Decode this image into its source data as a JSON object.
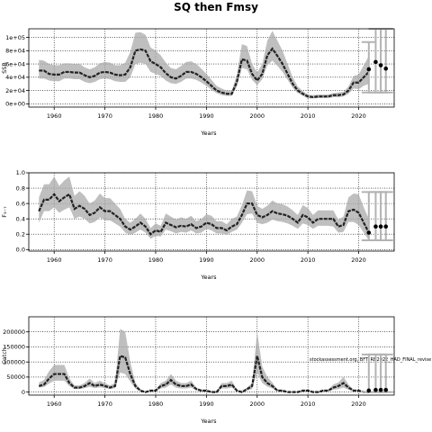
{
  "figure": {
    "title": "SQ then Fmsy",
    "watermark": "stockassessment.org, BFT_RB2022_HAD_FINAL_revise"
  },
  "chart_data": [
    {
      "type": "line",
      "id": "ssb",
      "ylabel": "SSB",
      "xlabel": "Years",
      "xlim": [
        1955,
        2027
      ],
      "ylim": [
        -5000,
        113000
      ],
      "xticks": [
        1960,
        1970,
        1980,
        1990,
        2000,
        2010,
        2020
      ],
      "yticks": [
        0,
        20000,
        40000,
        60000,
        80000,
        100000
      ],
      "ytick_labels": [
        "0e+00",
        "2e+04",
        "4e+04",
        "6e+04",
        "8e+04",
        "1e+05"
      ],
      "grid": "dotted",
      "series": [
        {
          "x": [
            1957,
            1958,
            1959,
            1960,
            1961,
            1962,
            1963,
            1964,
            1965,
            1966,
            1967,
            1968,
            1969,
            1970,
            1971,
            1972,
            1973,
            1974,
            1975,
            1976,
            1977,
            1978,
            1979,
            1980,
            1981,
            1982,
            1983,
            1984,
            1985,
            1986,
            1987,
            1988,
            1989,
            1990,
            1991,
            1992,
            1993,
            1994,
            1995,
            1996,
            1997,
            1998,
            1999,
            2000,
            2001,
            2002,
            2003,
            2004,
            2005,
            2006,
            2007,
            2008,
            2009,
            2010,
            2011,
            2012,
            2013,
            2014,
            2015,
            2016,
            2017,
            2018,
            2019,
            2020,
            2021,
            2022
          ],
          "y": [
            50000,
            50000,
            45000,
            44000,
            44000,
            48000,
            48000,
            47000,
            47000,
            43000,
            40000,
            42000,
            47000,
            48000,
            47000,
            44000,
            43000,
            44000,
            55000,
            80000,
            82000,
            80000,
            64000,
            60000,
            55000,
            46000,
            40000,
            38000,
            42000,
            48000,
            48000,
            45000,
            40000,
            34000,
            27000,
            20000,
            17000,
            15000,
            15000,
            33000,
            67000,
            65000,
            45000,
            35000,
            45000,
            73000,
            83000,
            72000,
            60000,
            45000,
            30000,
            20000,
            15000,
            11000,
            10000,
            11000,
            11000,
            11000,
            13000,
            13000,
            14000,
            20000,
            32000,
            32000,
            40000,
            48000
          ],
          "lower": [
            38000,
            38000,
            35000,
            34000,
            34000,
            38000,
            38000,
            37000,
            37000,
            33000,
            31000,
            33000,
            37000,
            38000,
            37000,
            34000,
            33000,
            33000,
            40000,
            60000,
            62000,
            60000,
            48000,
            45000,
            42000,
            35000,
            31000,
            30000,
            33000,
            38000,
            38000,
            36000,
            32000,
            27000,
            21000,
            16000,
            13000,
            12000,
            12000,
            26000,
            54000,
            52000,
            36000,
            28000,
            37000,
            58000,
            65000,
            57000,
            48000,
            36000,
            24000,
            16000,
            12000,
            8000,
            8000,
            8500,
            8500,
            8500,
            10000,
            10000,
            11000,
            15000,
            23000,
            22000,
            27000,
            30000
          ],
          "upper": [
            66000,
            65000,
            60000,
            58000,
            58000,
            61000,
            61000,
            60000,
            60000,
            55000,
            52000,
            55000,
            61000,
            63000,
            62000,
            58000,
            58000,
            62000,
            78000,
            107000,
            108000,
            104000,
            85000,
            80000,
            73000,
            62000,
            54000,
            52000,
            57000,
            63000,
            64000,
            60000,
            53000,
            45000,
            36000,
            27000,
            23000,
            20000,
            20000,
            44000,
            90000,
            87000,
            60000,
            47000,
            60000,
            95000,
            110000,
            95000,
            80000,
            60000,
            40000,
            26000,
            19000,
            14000,
            13000,
            14000,
            14000,
            14000,
            16000,
            17000,
            18000,
            26000,
            42000,
            44000,
            58000,
            72000
          ]
        }
      ],
      "forecast": {
        "x": [
          2022,
          2023,
          2024,
          2025
        ],
        "y": [
          52000,
          63000,
          58000,
          53000
        ],
        "lower": [
          17000,
          17000,
          17000,
          17000
        ],
        "upper": [
          93000,
          113000,
          113000,
          113000
        ]
      }
    },
    {
      "type": "line",
      "id": "fbar",
      "ylabel": "F₃₋₇",
      "xlabel": "Years",
      "xlim": [
        1955,
        2027
      ],
      "ylim": [
        -0.02,
        1.0
      ],
      "xticks": [
        1960,
        1970,
        1980,
        1990,
        2000,
        2010,
        2020
      ],
      "yticks": [
        0,
        0.2,
        0.4,
        0.6,
        0.8,
        1.0
      ],
      "ytick_labels": [
        "0.0",
        "0.2",
        "0.4",
        "0.6",
        "0.8",
        "1.0"
      ],
      "grid": "dotted",
      "series": [
        {
          "x": [
            1957,
            1958,
            1959,
            1960,
            1961,
            1962,
            1963,
            1964,
            1965,
            1966,
            1967,
            1968,
            1969,
            1970,
            1971,
            1972,
            1973,
            1974,
            1975,
            1976,
            1977,
            1978,
            1979,
            1980,
            1981,
            1982,
            1983,
            1984,
            1985,
            1986,
            1987,
            1988,
            1989,
            1990,
            1991,
            1992,
            1993,
            1994,
            1995,
            1996,
            1997,
            1998,
            1999,
            2000,
            2001,
            2002,
            2003,
            2004,
            2005,
            2006,
            2007,
            2008,
            2009,
            2010,
            2011,
            2012,
            2013,
            2014,
            2015,
            2016,
            2017,
            2018,
            2019,
            2020,
            2021,
            2022
          ],
          "y": [
            0.5,
            0.65,
            0.65,
            0.72,
            0.63,
            0.68,
            0.72,
            0.53,
            0.57,
            0.53,
            0.45,
            0.48,
            0.55,
            0.5,
            0.5,
            0.45,
            0.4,
            0.3,
            0.26,
            0.3,
            0.35,
            0.3,
            0.2,
            0.25,
            0.23,
            0.35,
            0.32,
            0.29,
            0.31,
            0.3,
            0.33,
            0.28,
            0.3,
            0.35,
            0.33,
            0.28,
            0.28,
            0.25,
            0.3,
            0.33,
            0.45,
            0.6,
            0.6,
            0.45,
            0.42,
            0.45,
            0.5,
            0.47,
            0.46,
            0.44,
            0.4,
            0.35,
            0.45,
            0.42,
            0.35,
            0.4,
            0.4,
            0.4,
            0.4,
            0.3,
            0.32,
            0.5,
            0.52,
            0.48,
            0.35,
            0.22
          ],
          "lower": [
            0.35,
            0.5,
            0.5,
            0.55,
            0.48,
            0.52,
            0.55,
            0.4,
            0.43,
            0.4,
            0.34,
            0.36,
            0.42,
            0.38,
            0.38,
            0.34,
            0.3,
            0.22,
            0.19,
            0.22,
            0.26,
            0.22,
            0.14,
            0.18,
            0.17,
            0.26,
            0.24,
            0.21,
            0.23,
            0.22,
            0.25,
            0.21,
            0.22,
            0.27,
            0.25,
            0.21,
            0.21,
            0.19,
            0.23,
            0.26,
            0.35,
            0.46,
            0.47,
            0.35,
            0.33,
            0.35,
            0.39,
            0.37,
            0.36,
            0.34,
            0.31,
            0.27,
            0.34,
            0.32,
            0.27,
            0.31,
            0.31,
            0.31,
            0.3,
            0.22,
            0.23,
            0.36,
            0.36,
            0.32,
            0.22,
            0.12
          ],
          "upper": [
            0.68,
            0.85,
            0.85,
            0.95,
            0.83,
            0.9,
            0.95,
            0.7,
            0.76,
            0.7,
            0.6,
            0.64,
            0.73,
            0.67,
            0.67,
            0.6,
            0.53,
            0.4,
            0.35,
            0.4,
            0.47,
            0.4,
            0.28,
            0.34,
            0.31,
            0.47,
            0.43,
            0.39,
            0.42,
            0.4,
            0.44,
            0.37,
            0.4,
            0.46,
            0.44,
            0.37,
            0.37,
            0.33,
            0.4,
            0.43,
            0.58,
            0.77,
            0.76,
            0.57,
            0.53,
            0.57,
            0.64,
            0.6,
            0.59,
            0.56,
            0.51,
            0.45,
            0.58,
            0.54,
            0.45,
            0.51,
            0.51,
            0.51,
            0.51,
            0.39,
            0.43,
            0.68,
            0.73,
            0.72,
            0.55,
            0.4
          ]
        }
      ],
      "forecast": {
        "x": [
          2022,
          2023,
          2024,
          2025
        ],
        "y": [
          0.22,
          0.3,
          0.3,
          0.3
        ],
        "lower": [
          0.12,
          0.12,
          0.12,
          0.12
        ],
        "upper": [
          0.75,
          0.75,
          0.75,
          0.75
        ]
      }
    },
    {
      "type": "line",
      "id": "catch",
      "ylabel": "Catch",
      "xlabel": "Years",
      "xlim": [
        1955,
        2027
      ],
      "ylim": [
        -10000,
        250000
      ],
      "xticks": [
        1960,
        1970,
        1980,
        1990,
        2000,
        2010,
        2020
      ],
      "yticks": [
        0,
        50000,
        100000,
        150000,
        200000
      ],
      "ytick_labels": [
        "0",
        "50000",
        "100000",
        "150000",
        "200000"
      ],
      "grid": "dotted",
      "series": [
        {
          "x": [
            1957,
            1958,
            1959,
            1960,
            1961,
            1962,
            1963,
            1964,
            1965,
            1966,
            1967,
            1968,
            1969,
            1970,
            1971,
            1972,
            1973,
            1974,
            1975,
            1976,
            1977,
            1978,
            1979,
            1980,
            1981,
            1982,
            1983,
            1984,
            1985,
            1986,
            1987,
            1988,
            1989,
            1990,
            1991,
            1992,
            1993,
            1994,
            1995,
            1996,
            1997,
            1998,
            1999,
            2000,
            2001,
            2002,
            2003,
            2004,
            2005,
            2006,
            2007,
            2008,
            2009,
            2010,
            2011,
            2012,
            2013,
            2014,
            2015,
            2016,
            2017,
            2018,
            2019,
            2020,
            2021,
            2022
          ],
          "y": [
            20000,
            25000,
            45000,
            60000,
            60000,
            60000,
            30000,
            15000,
            15000,
            20000,
            30000,
            20000,
            25000,
            20000,
            15000,
            20000,
            120000,
            115000,
            60000,
            20000,
            5000,
            0,
            5000,
            5000,
            20000,
            25000,
            40000,
            25000,
            20000,
            20000,
            25000,
            10000,
            5000,
            5000,
            0,
            0,
            20000,
            20000,
            25000,
            5000,
            0,
            10000,
            20000,
            120000,
            50000,
            30000,
            20000,
            5000,
            5000,
            0,
            0,
            0,
            5000,
            5000,
            0,
            0,
            5000,
            5000,
            15000,
            20000,
            30000,
            15000,
            5000,
            5000,
            0,
            0
          ],
          "lower": [
            15000,
            17000,
            28000,
            38000,
            38000,
            38000,
            20000,
            10000,
            10000,
            13000,
            18000,
            13000,
            16000,
            13000,
            10000,
            13000,
            65000,
            60000,
            35000,
            12000,
            2000,
            0,
            2000,
            2000,
            12000,
            15000,
            25000,
            15000,
            12000,
            12000,
            15000,
            6000,
            2000,
            2000,
            0,
            0,
            12000,
            12000,
            15000,
            2000,
            0,
            5000,
            10000,
            65000,
            30000,
            18000,
            12000,
            2000,
            2000,
            0,
            0,
            0,
            2000,
            2000,
            0,
            0,
            2000,
            2000,
            8000,
            10000,
            15000,
            8000,
            2000,
            2000,
            0,
            0
          ],
          "upper": [
            32000,
            40000,
            70000,
            90000,
            90000,
            90000,
            45000,
            22000,
            22000,
            30000,
            45000,
            30000,
            38000,
            30000,
            22000,
            30000,
            210000,
            200000,
            100000,
            32000,
            8000,
            2000,
            8000,
            8000,
            30000,
            38000,
            60000,
            38000,
            30000,
            30000,
            38000,
            15000,
            8000,
            8000,
            2000,
            2000,
            30000,
            30000,
            38000,
            8000,
            2000,
            15000,
            30000,
            200000,
            85000,
            50000,
            32000,
            8000,
            8000,
            2000,
            2000,
            2000,
            8000,
            8000,
            2000,
            2000,
            8000,
            8000,
            25000,
            32000,
            50000,
            25000,
            8000,
            8000,
            2000,
            2000
          ]
        }
      ],
      "forecast": {
        "x": [
          2022,
          2023,
          2024,
          2025
        ],
        "y": [
          5000,
          7000,
          7000,
          7000
        ],
        "lower": [
          0,
          0,
          0,
          0
        ],
        "upper": [
          125000,
          125000,
          125000,
          125000
        ]
      }
    }
  ]
}
